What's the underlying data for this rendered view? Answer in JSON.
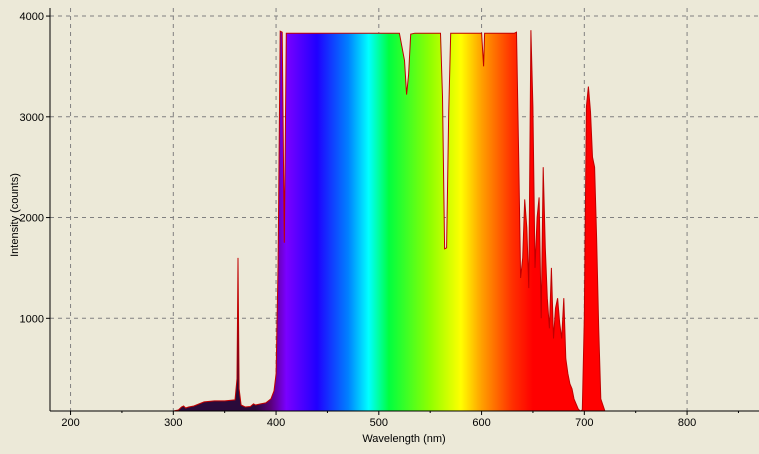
{
  "chart_data": {
    "type": "area",
    "title": "",
    "xlabel": "Wavelength (nm)",
    "ylabel": "Intensity (counts)",
    "xlim": [
      180,
      870
    ],
    "ylim": [
      80,
      4080
    ],
    "x_ticks": [
      200,
      300,
      400,
      500,
      600,
      700,
      800
    ],
    "y_ticks": [
      1000,
      2000,
      3000,
      4000
    ],
    "grid": true,
    "fill": "visible-spectrum gradient under curve",
    "colors": {
      "background": "#ece9d8",
      "curve": "#c00000",
      "grid": "#808080",
      "axis": "#000000"
    },
    "series": [
      {
        "x": [
          300,
          305,
          308,
          310,
          312,
          315,
          320,
          330,
          340,
          350,
          355,
          360,
          362,
          363,
          364,
          366,
          370,
          375,
          378,
          380,
          385,
          390,
          395,
          398,
          400,
          402,
          404,
          406,
          408,
          410,
          415,
          420,
          440,
          460,
          480,
          500,
          520,
          525,
          527,
          529,
          531,
          535,
          540,
          560,
          562,
          564,
          566,
          568,
          570,
          572,
          575,
          580,
          590,
          595,
          600,
          602,
          603,
          604,
          606,
          610,
          620,
          630,
          632,
          634,
          636,
          638,
          640,
          642,
          644,
          646,
          648,
          650,
          652,
          654,
          656,
          658,
          660,
          662,
          664,
          666,
          668,
          670,
          672,
          674,
          676,
          678,
          680,
          682,
          684,
          686,
          688,
          690,
          692,
          694,
          696,
          698,
          700,
          702,
          704,
          706,
          708,
          710,
          712,
          714,
          716,
          720
        ],
        "y": [
          80,
          90,
          120,
          130,
          110,
          120,
          130,
          170,
          180,
          180,
          185,
          190,
          400,
          1600,
          300,
          140,
          120,
          125,
          150,
          140,
          150,
          160,
          200,
          280,
          450,
          1550,
          3850,
          3840,
          1750,
          3830,
          3830,
          3830,
          3830,
          3830,
          3830,
          3830,
          3830,
          3560,
          3220,
          3420,
          3820,
          3830,
          3830,
          3830,
          3200,
          1690,
          1700,
          3040,
          3830,
          3830,
          3830,
          3830,
          3830,
          3830,
          3830,
          3500,
          3830,
          3830,
          3830,
          3830,
          3830,
          3830,
          3830,
          3840,
          2650,
          1400,
          1600,
          2180,
          1900,
          1300,
          3860,
          3100,
          1500,
          2000,
          2200,
          1000,
          2500,
          1700,
          1200,
          900,
          1500,
          800,
          1100,
          1200,
          950,
          800,
          1200,
          600,
          450,
          350,
          300,
          200,
          150,
          100,
          80,
          90,
          1000,
          3100,
          3300,
          3050,
          2600,
          2500,
          1800,
          900,
          200,
          80
        ]
      }
    ]
  }
}
